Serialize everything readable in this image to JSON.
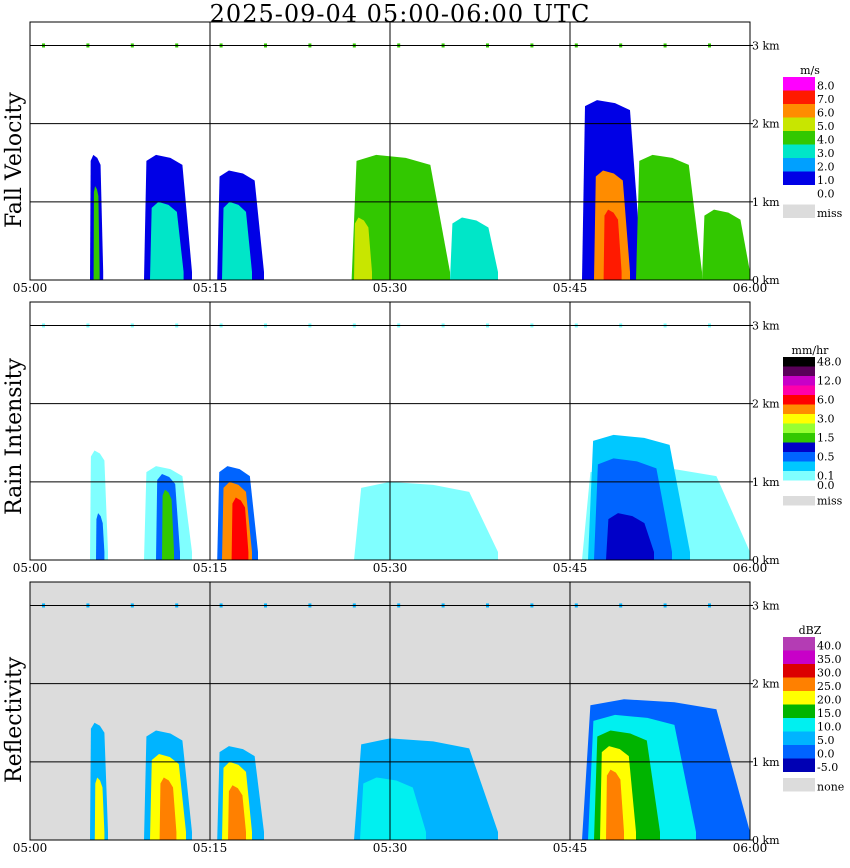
{
  "title": "2025-09-04   05:00-06:00 UTC",
  "x_ticks": [
    "05:00",
    "05:15",
    "05:30",
    "05:45",
    "06:00"
  ],
  "y_ticks": [
    "0 km",
    "1 km",
    "2 km",
    "3 km"
  ],
  "panels": [
    {
      "name": "Fall Velocity",
      "unit": "m/s",
      "legend": [
        {
          "label": "8.0",
          "color": "#ff00ff"
        },
        {
          "label": "7.0",
          "color": "#ff1a00"
        },
        {
          "label": "6.0",
          "color": "#ff8c00"
        },
        {
          "label": "5.0",
          "color": "#c8e600"
        },
        {
          "label": "4.0",
          "color": "#32c800"
        },
        {
          "label": "3.0",
          "color": "#00e6c8"
        },
        {
          "label": "2.0",
          "color": "#00a0ff"
        },
        {
          "label": "1.0",
          "color": "#0000e6"
        },
        {
          "label": "0.0",
          "color": "#ffffff"
        },
        {
          "label": "miss",
          "color": "#dcdcdc"
        }
      ],
      "background": "#ffffff",
      "echoes": [
        {
          "x0": 5.0,
          "x1": 6.1,
          "h": 1.6,
          "c": "#0000e6"
        },
        {
          "x0": 5.3,
          "x1": 5.8,
          "h": 1.2,
          "c": "#32c800"
        },
        {
          "x0": 9.5,
          "x1": 13.5,
          "h": 1.6,
          "c": "#0000e6"
        },
        {
          "x0": 10.0,
          "x1": 12.8,
          "h": 1.0,
          "c": "#00e6c8"
        },
        {
          "x0": 15.6,
          "x1": 19.5,
          "h": 1.4,
          "c": "#0000e6"
        },
        {
          "x0": 16.0,
          "x1": 18.5,
          "h": 1.0,
          "c": "#00e6c8"
        },
        {
          "x0": 26.8,
          "x1": 35.0,
          "h": 1.6,
          "c": "#32c800"
        },
        {
          "x0": 27.0,
          "x1": 28.5,
          "h": 0.8,
          "c": "#c8e600"
        },
        {
          "x0": 35.0,
          "x1": 39.0,
          "h": 0.8,
          "c": "#00e6c8"
        },
        {
          "x0": 46.0,
          "x1": 51.0,
          "h": 2.3,
          "c": "#0000e6"
        },
        {
          "x0": 47.0,
          "x1": 50.0,
          "h": 1.4,
          "c": "#ff8c00"
        },
        {
          "x0": 47.8,
          "x1": 49.3,
          "h": 0.9,
          "c": "#ff1a00"
        },
        {
          "x0": 50.5,
          "x1": 56.0,
          "h": 1.6,
          "c": "#32c800"
        },
        {
          "x0": 56.0,
          "x1": 60.0,
          "h": 0.9,
          "c": "#32c800"
        }
      ]
    },
    {
      "name": "Rain Intensity",
      "unit": "mm/hr",
      "legend": [
        {
          "label": "48.0",
          "color": "#000000"
        },
        {
          "label": "",
          "color": "#5a005a"
        },
        {
          "label": "12.0",
          "color": "#c800c8"
        },
        {
          "label": "",
          "color": "#ff00aa"
        },
        {
          "label": "6.0",
          "color": "#ff0000"
        },
        {
          "label": "",
          "color": "#ff8c00"
        },
        {
          "label": "3.0",
          "color": "#ffff00"
        },
        {
          "label": "",
          "color": "#96ff32"
        },
        {
          "label": "1.5",
          "color": "#32c800"
        },
        {
          "label": "",
          "color": "#0000c8"
        },
        {
          "label": "0.5",
          "color": "#0064ff"
        },
        {
          "label": "",
          "color": "#00c8ff"
        },
        {
          "label": "0.1",
          "color": "#80ffff"
        },
        {
          "label": "0.0",
          "color": "#ffffff"
        },
        {
          "label": "miss",
          "color": "#dcdcdc"
        }
      ],
      "background": "#ffffff",
      "echoes": [
        {
          "x0": 5.0,
          "x1": 6.5,
          "h": 1.4,
          "c": "#80ffff"
        },
        {
          "x0": 5.5,
          "x1": 6.2,
          "h": 0.6,
          "c": "#0064ff"
        },
        {
          "x0": 9.5,
          "x1": 13.5,
          "h": 1.2,
          "c": "#80ffff"
        },
        {
          "x0": 10.5,
          "x1": 12.5,
          "h": 1.1,
          "c": "#0064ff"
        },
        {
          "x0": 11.0,
          "x1": 12.0,
          "h": 0.9,
          "c": "#32c800"
        },
        {
          "x0": 15.6,
          "x1": 19.0,
          "h": 1.2,
          "c": "#0064ff"
        },
        {
          "x0": 16.0,
          "x1": 18.5,
          "h": 1.0,
          "c": "#ff8c00"
        },
        {
          "x0": 16.8,
          "x1": 18.2,
          "h": 0.8,
          "c": "#ff0000"
        },
        {
          "x0": 27.0,
          "x1": 39.0,
          "h": 1.0,
          "c": "#80ffff"
        },
        {
          "x0": 46.0,
          "x1": 60.0,
          "h": 1.2,
          "c": "#80ffff"
        },
        {
          "x0": 46.5,
          "x1": 55.0,
          "h": 1.6,
          "c": "#00c8ff"
        },
        {
          "x0": 47.0,
          "x1": 53.5,
          "h": 1.3,
          "c": "#0064ff"
        },
        {
          "x0": 48.0,
          "x1": 52.0,
          "h": 0.6,
          "c": "#0000c8"
        }
      ]
    },
    {
      "name": "Reflectivity",
      "unit": "dBZ",
      "legend": [
        {
          "label": "40.0",
          "color": "#b43cb4"
        },
        {
          "label": "35.0",
          "color": "#c800c8"
        },
        {
          "label": "30.0",
          "color": "#dc0000"
        },
        {
          "label": "25.0",
          "color": "#ff8000"
        },
        {
          "label": "20.0",
          "color": "#ffff00"
        },
        {
          "label": "15.0",
          "color": "#00b400"
        },
        {
          "label": "10.0",
          "color": "#00f0f0"
        },
        {
          "label": "5.0",
          "color": "#00b4ff"
        },
        {
          "label": "0.0",
          "color": "#0064ff"
        },
        {
          "label": "-5.0",
          "color": "#0000b4"
        },
        {
          "label": "none",
          "color": "#dcdcdc"
        }
      ],
      "background": "#dcdcdc",
      "echoes": [
        {
          "x0": 5.0,
          "x1": 6.5,
          "h": 1.5,
          "c": "#00b4ff"
        },
        {
          "x0": 5.4,
          "x1": 6.2,
          "h": 0.8,
          "c": "#ffff00"
        },
        {
          "x0": 9.5,
          "x1": 13.5,
          "h": 1.4,
          "c": "#00b4ff"
        },
        {
          "x0": 10.0,
          "x1": 13.0,
          "h": 1.1,
          "c": "#ffff00"
        },
        {
          "x0": 10.8,
          "x1": 12.2,
          "h": 0.8,
          "c": "#ff8000"
        },
        {
          "x0": 15.6,
          "x1": 19.5,
          "h": 1.2,
          "c": "#00b4ff"
        },
        {
          "x0": 16.0,
          "x1": 18.5,
          "h": 1.0,
          "c": "#ffff00"
        },
        {
          "x0": 16.5,
          "x1": 18.0,
          "h": 0.7,
          "c": "#ff8000"
        },
        {
          "x0": 27.0,
          "x1": 39.0,
          "h": 1.3,
          "c": "#00b4ff"
        },
        {
          "x0": 27.5,
          "x1": 33.0,
          "h": 0.8,
          "c": "#00f0f0"
        },
        {
          "x0": 46.0,
          "x1": 60.0,
          "h": 1.8,
          "c": "#0064ff"
        },
        {
          "x0": 46.5,
          "x1": 55.5,
          "h": 1.6,
          "c": "#00f0f0"
        },
        {
          "x0": 47.0,
          "x1": 52.5,
          "h": 1.4,
          "c": "#00b400"
        },
        {
          "x0": 47.5,
          "x1": 50.5,
          "h": 1.2,
          "c": "#ffff00"
        },
        {
          "x0": 48.0,
          "x1": 49.5,
          "h": 0.9,
          "c": "#ff8000"
        }
      ]
    }
  ],
  "chart_data": [
    {
      "type": "heatmap",
      "title": "2025-09-04   05:00-06:00 UTC",
      "ylabel": "Fall Velocity",
      "colorbar_unit": "m/s",
      "x_range": [
        "05:00",
        "06:00"
      ],
      "y_range_km": [
        0,
        3.3
      ],
      "x": [
        "05:00",
        "05:15",
        "05:30",
        "05:45",
        "06:00"
      ]
    },
    {
      "type": "heatmap",
      "ylabel": "Rain Intensity",
      "colorbar_unit": "mm/hr",
      "x_range": [
        "05:00",
        "06:00"
      ],
      "y_range_km": [
        0,
        3.3
      ]
    },
    {
      "type": "heatmap",
      "ylabel": "Reflectivity",
      "colorbar_unit": "dBZ",
      "x_range": [
        "05:00",
        "06:00"
      ],
      "y_range_km": [
        0,
        3.3
      ]
    }
  ]
}
